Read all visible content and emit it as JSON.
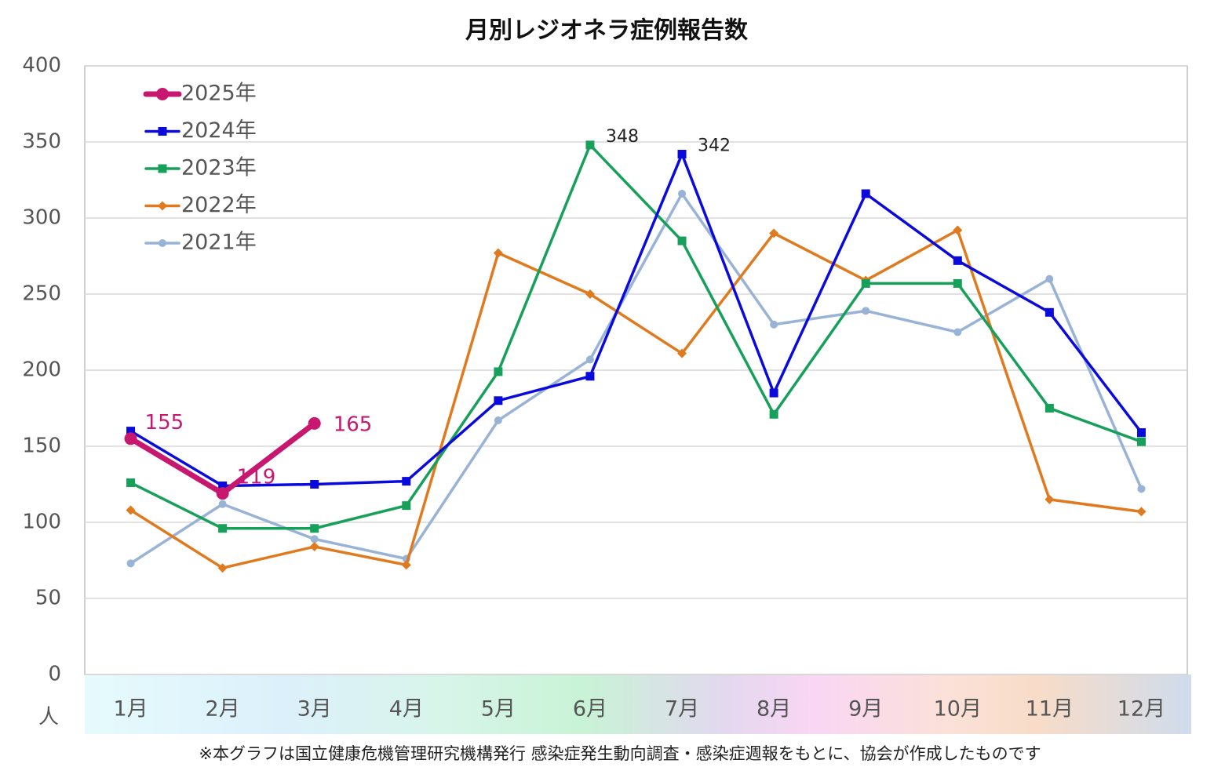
{
  "chart_data": {
    "type": "line",
    "title": "月別レジオネラ症例報告数",
    "y_label": "人",
    "note": "※本グラフは国立健康危機管理研究機構発行 感染症発生動向調査・感染症週報をもとに、協会が作成したものです",
    "categories": [
      "1月",
      "2月",
      "3月",
      "4月",
      "5月",
      "6月",
      "7月",
      "8月",
      "9月",
      "10月",
      "11月",
      "12月"
    ],
    "ylim": [
      0,
      400
    ],
    "yticks": [
      0,
      50,
      100,
      150,
      200,
      250,
      300,
      350,
      400
    ],
    "grid": true,
    "legend": "top-left",
    "series": [
      {
        "name": "2025年",
        "color": "#c8176e",
        "marker": "circle",
        "width": 7,
        "labeled": [
          0,
          1,
          2
        ],
        "values": [
          155,
          119,
          165,
          null,
          null,
          null,
          null,
          null,
          null,
          null,
          null,
          null
        ]
      },
      {
        "name": "2024年",
        "color": "#0a0adc",
        "marker": "square",
        "width": 3.5,
        "labeled": [
          6
        ],
        "values": [
          160,
          124,
          125,
          127,
          180,
          196,
          342,
          185,
          316,
          272,
          238,
          159
        ]
      },
      {
        "name": "2023年",
        "color": "#16a05a",
        "marker": "square",
        "width": 3.5,
        "labeled": [
          5
        ],
        "values": [
          126,
          96,
          96,
          111,
          199,
          348,
          285,
          171,
          257,
          257,
          175,
          153
        ]
      },
      {
        "name": "2022年",
        "color": "#e07a1f",
        "marker": "diamond",
        "width": 3.5,
        "labeled": [],
        "values": [
          108,
          70,
          84,
          72,
          277,
          250,
          211,
          290,
          259,
          292,
          115,
          107
        ]
      },
      {
        "name": "2021年",
        "color": "#98b3d6",
        "marker": "circle-small",
        "width": 3.5,
        "labeled": [],
        "values": [
          73,
          112,
          89,
          76,
          167,
          207,
          316,
          230,
          239,
          225,
          260,
          122
        ]
      }
    ]
  }
}
